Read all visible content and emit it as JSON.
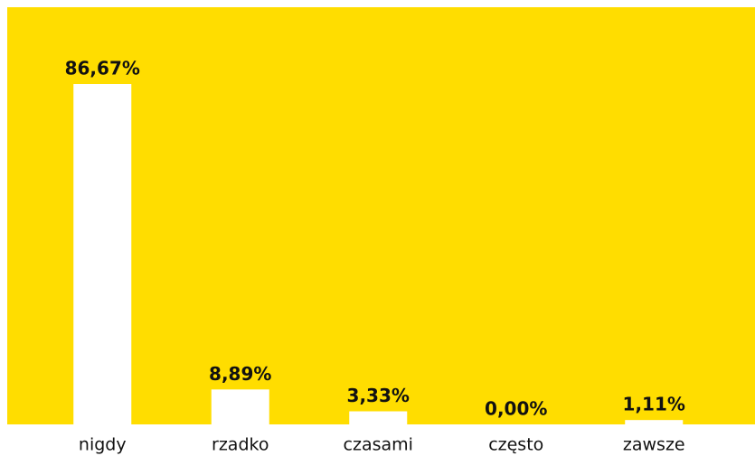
{
  "chart_data": {
    "type": "bar",
    "categories": [
      "nigdy",
      "rzadko",
      "czasami",
      "często",
      "zawsze"
    ],
    "values": [
      86.67,
      8.89,
      3.33,
      0,
      1.11
    ],
    "value_labels": [
      "86,67%",
      "8,89%",
      "3,33%",
      "0,00%",
      "1,11%"
    ],
    "color": "#ffffff",
    "background": "#ffdd00"
  }
}
